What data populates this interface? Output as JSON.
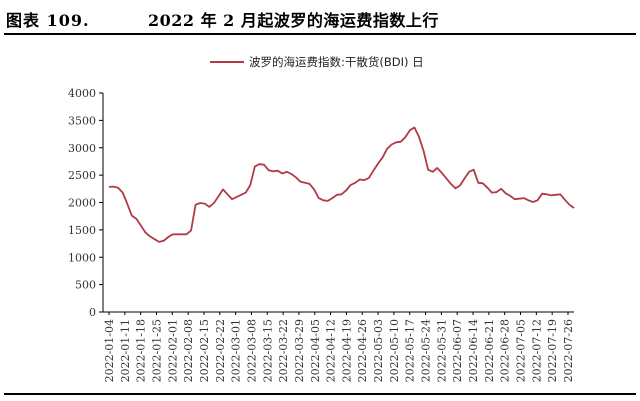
{
  "figure": {
    "number_label": "图表 109.",
    "title": "2022 年 2 月起波罗的海运费指数上行"
  },
  "chart_data": {
    "type": "line",
    "title": "2022 年 2 月起波罗的海运费指数上行",
    "xlabel": "",
    "ylabel": "",
    "ylim": [
      0,
      4000
    ],
    "yticks": [
      0,
      500,
      1000,
      1500,
      2000,
      2500,
      3000,
      3500,
      4000
    ],
    "grid": false,
    "legend_position": "top-center",
    "x_tick_labels": [
      "2022-01-04",
      "2022-01-11",
      "2022-01-18",
      "2022-01-25",
      "2022-02-01",
      "2022-02-08",
      "2022-02-15",
      "2022-02-22",
      "2022-03-01",
      "2022-03-08",
      "2022-03-15",
      "2022-03-22",
      "2022-03-29",
      "2022-04-05",
      "2022-04-12",
      "2022-04-19",
      "2022-04-26",
      "2022-05-03",
      "2022-05-10",
      "2022-05-17",
      "2022-05-24",
      "2022-05-31",
      "2022-06-07",
      "2022-06-14",
      "2022-06-21",
      "2022-06-28",
      "2022-07-05",
      "2022-07-12",
      "2022-07-19",
      "2022-07-26"
    ],
    "series": [
      {
        "name": "波罗的海运费指数:干散货(BDI) 日",
        "color": "#b03a48",
        "values": [
          2285,
          2290,
          2270,
          2180,
          1980,
          1760,
          1700,
          1580,
          1450,
          1380,
          1330,
          1280,
          1300,
          1370,
          1420,
          1420,
          1420,
          1420,
          1490,
          1960,
          1990,
          1980,
          1920,
          1990,
          2110,
          2240,
          2150,
          2060,
          2100,
          2140,
          2180,
          2320,
          2660,
          2700,
          2690,
          2590,
          2570,
          2580,
          2530,
          2560,
          2520,
          2460,
          2380,
          2360,
          2340,
          2240,
          2080,
          2040,
          2030,
          2080,
          2140,
          2150,
          2220,
          2320,
          2360,
          2420,
          2410,
          2450,
          2580,
          2710,
          2820,
          2980,
          3060,
          3100,
          3110,
          3190,
          3320,
          3370,
          3200,
          2940,
          2600,
          2560,
          2630,
          2540,
          2440,
          2340,
          2260,
          2310,
          2440,
          2560,
          2600,
          2360,
          2350,
          2270,
          2180,
          2190,
          2250,
          2170,
          2120,
          2060,
          2070,
          2080,
          2040,
          2010,
          2040,
          2160,
          2150,
          2130,
          2140,
          2150,
          2050,
          1960,
          1900
        ]
      }
    ]
  }
}
